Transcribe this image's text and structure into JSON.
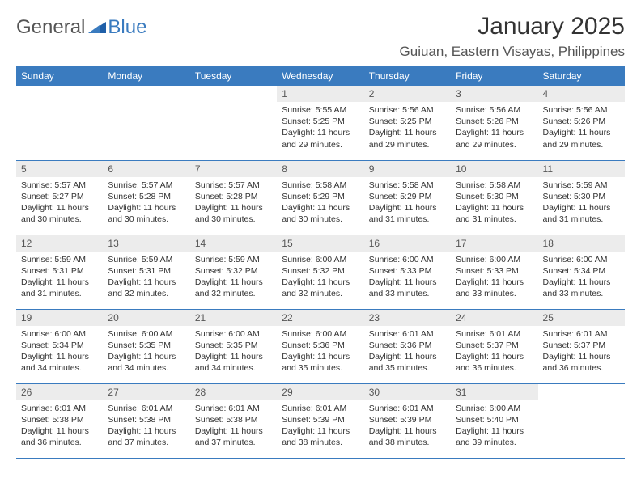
{
  "brand": {
    "text1": "General",
    "text2": "Blue"
  },
  "title": "January 2025",
  "location": "Guiuan, Eastern Visayas, Philippines",
  "colors": {
    "header_bg": "#3a7bbf",
    "header_text": "#ffffff",
    "daybar_bg": "#ececec",
    "page_bg": "#ffffff",
    "rule": "#3a7bbf",
    "body_text": "#333333"
  },
  "day_headers": [
    "Sunday",
    "Monday",
    "Tuesday",
    "Wednesday",
    "Thursday",
    "Friday",
    "Saturday"
  ],
  "weeks": [
    [
      {
        "n": "",
        "sunrise": "",
        "sunset": "",
        "daylight": ""
      },
      {
        "n": "",
        "sunrise": "",
        "sunset": "",
        "daylight": ""
      },
      {
        "n": "",
        "sunrise": "",
        "sunset": "",
        "daylight": ""
      },
      {
        "n": "1",
        "sunrise": "Sunrise: 5:55 AM",
        "sunset": "Sunset: 5:25 PM",
        "daylight": "Daylight: 11 hours and 29 minutes."
      },
      {
        "n": "2",
        "sunrise": "Sunrise: 5:56 AM",
        "sunset": "Sunset: 5:25 PM",
        "daylight": "Daylight: 11 hours and 29 minutes."
      },
      {
        "n": "3",
        "sunrise": "Sunrise: 5:56 AM",
        "sunset": "Sunset: 5:26 PM",
        "daylight": "Daylight: 11 hours and 29 minutes."
      },
      {
        "n": "4",
        "sunrise": "Sunrise: 5:56 AM",
        "sunset": "Sunset: 5:26 PM",
        "daylight": "Daylight: 11 hours and 29 minutes."
      }
    ],
    [
      {
        "n": "5",
        "sunrise": "Sunrise: 5:57 AM",
        "sunset": "Sunset: 5:27 PM",
        "daylight": "Daylight: 11 hours and 30 minutes."
      },
      {
        "n": "6",
        "sunrise": "Sunrise: 5:57 AM",
        "sunset": "Sunset: 5:28 PM",
        "daylight": "Daylight: 11 hours and 30 minutes."
      },
      {
        "n": "7",
        "sunrise": "Sunrise: 5:57 AM",
        "sunset": "Sunset: 5:28 PM",
        "daylight": "Daylight: 11 hours and 30 minutes."
      },
      {
        "n": "8",
        "sunrise": "Sunrise: 5:58 AM",
        "sunset": "Sunset: 5:29 PM",
        "daylight": "Daylight: 11 hours and 30 minutes."
      },
      {
        "n": "9",
        "sunrise": "Sunrise: 5:58 AM",
        "sunset": "Sunset: 5:29 PM",
        "daylight": "Daylight: 11 hours and 31 minutes."
      },
      {
        "n": "10",
        "sunrise": "Sunrise: 5:58 AM",
        "sunset": "Sunset: 5:30 PM",
        "daylight": "Daylight: 11 hours and 31 minutes."
      },
      {
        "n": "11",
        "sunrise": "Sunrise: 5:59 AM",
        "sunset": "Sunset: 5:30 PM",
        "daylight": "Daylight: 11 hours and 31 minutes."
      }
    ],
    [
      {
        "n": "12",
        "sunrise": "Sunrise: 5:59 AM",
        "sunset": "Sunset: 5:31 PM",
        "daylight": "Daylight: 11 hours and 31 minutes."
      },
      {
        "n": "13",
        "sunrise": "Sunrise: 5:59 AM",
        "sunset": "Sunset: 5:31 PM",
        "daylight": "Daylight: 11 hours and 32 minutes."
      },
      {
        "n": "14",
        "sunrise": "Sunrise: 5:59 AM",
        "sunset": "Sunset: 5:32 PM",
        "daylight": "Daylight: 11 hours and 32 minutes."
      },
      {
        "n": "15",
        "sunrise": "Sunrise: 6:00 AM",
        "sunset": "Sunset: 5:32 PM",
        "daylight": "Daylight: 11 hours and 32 minutes."
      },
      {
        "n": "16",
        "sunrise": "Sunrise: 6:00 AM",
        "sunset": "Sunset: 5:33 PM",
        "daylight": "Daylight: 11 hours and 33 minutes."
      },
      {
        "n": "17",
        "sunrise": "Sunrise: 6:00 AM",
        "sunset": "Sunset: 5:33 PM",
        "daylight": "Daylight: 11 hours and 33 minutes."
      },
      {
        "n": "18",
        "sunrise": "Sunrise: 6:00 AM",
        "sunset": "Sunset: 5:34 PM",
        "daylight": "Daylight: 11 hours and 33 minutes."
      }
    ],
    [
      {
        "n": "19",
        "sunrise": "Sunrise: 6:00 AM",
        "sunset": "Sunset: 5:34 PM",
        "daylight": "Daylight: 11 hours and 34 minutes."
      },
      {
        "n": "20",
        "sunrise": "Sunrise: 6:00 AM",
        "sunset": "Sunset: 5:35 PM",
        "daylight": "Daylight: 11 hours and 34 minutes."
      },
      {
        "n": "21",
        "sunrise": "Sunrise: 6:00 AM",
        "sunset": "Sunset: 5:35 PM",
        "daylight": "Daylight: 11 hours and 34 minutes."
      },
      {
        "n": "22",
        "sunrise": "Sunrise: 6:00 AM",
        "sunset": "Sunset: 5:36 PM",
        "daylight": "Daylight: 11 hours and 35 minutes."
      },
      {
        "n": "23",
        "sunrise": "Sunrise: 6:01 AM",
        "sunset": "Sunset: 5:36 PM",
        "daylight": "Daylight: 11 hours and 35 minutes."
      },
      {
        "n": "24",
        "sunrise": "Sunrise: 6:01 AM",
        "sunset": "Sunset: 5:37 PM",
        "daylight": "Daylight: 11 hours and 36 minutes."
      },
      {
        "n": "25",
        "sunrise": "Sunrise: 6:01 AM",
        "sunset": "Sunset: 5:37 PM",
        "daylight": "Daylight: 11 hours and 36 minutes."
      }
    ],
    [
      {
        "n": "26",
        "sunrise": "Sunrise: 6:01 AM",
        "sunset": "Sunset: 5:38 PM",
        "daylight": "Daylight: 11 hours and 36 minutes."
      },
      {
        "n": "27",
        "sunrise": "Sunrise: 6:01 AM",
        "sunset": "Sunset: 5:38 PM",
        "daylight": "Daylight: 11 hours and 37 minutes."
      },
      {
        "n": "28",
        "sunrise": "Sunrise: 6:01 AM",
        "sunset": "Sunset: 5:38 PM",
        "daylight": "Daylight: 11 hours and 37 minutes."
      },
      {
        "n": "29",
        "sunrise": "Sunrise: 6:01 AM",
        "sunset": "Sunset: 5:39 PM",
        "daylight": "Daylight: 11 hours and 38 minutes."
      },
      {
        "n": "30",
        "sunrise": "Sunrise: 6:01 AM",
        "sunset": "Sunset: 5:39 PM",
        "daylight": "Daylight: 11 hours and 38 minutes."
      },
      {
        "n": "31",
        "sunrise": "Sunrise: 6:00 AM",
        "sunset": "Sunset: 5:40 PM",
        "daylight": "Daylight: 11 hours and 39 minutes."
      },
      {
        "n": "",
        "sunrise": "",
        "sunset": "",
        "daylight": ""
      }
    ]
  ]
}
